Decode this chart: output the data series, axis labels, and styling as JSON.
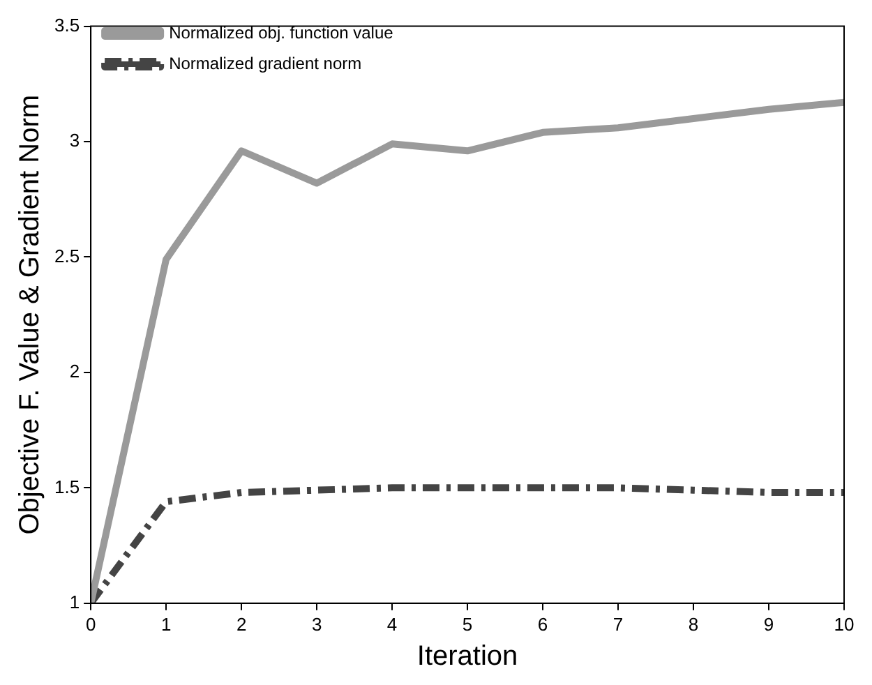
{
  "chart_data": {
    "type": "line",
    "xlabel": "Iteration",
    "ylabel": "Objective F. Value & Gradient Norm",
    "x": [
      0,
      1,
      2,
      3,
      4,
      5,
      6,
      7,
      8,
      9,
      10
    ],
    "series": [
      {
        "name": "Normalized obj. function value",
        "color": "#9a9a9a",
        "line_style": "solid",
        "values": [
          1,
          2.49,
          2.96,
          2.82,
          2.99,
          2.96,
          3.04,
          3.06,
          3.1,
          3.14,
          3.17
        ]
      },
      {
        "name": "Normalized gradient norm",
        "color": "#444444",
        "line_style": "dashed",
        "values": [
          1,
          1.44,
          1.48,
          1.49,
          1.5,
          1.5,
          1.5,
          1.5,
          1.49,
          1.48,
          1.48
        ]
      }
    ],
    "xlim": [
      0,
      10
    ],
    "xticks": [
      0,
      1,
      2,
      3,
      4,
      5,
      6,
      7,
      8,
      9,
      10
    ],
    "ylim": [
      1,
      3.5
    ],
    "yticks": [
      1,
      1.5,
      2,
      2.5,
      3,
      3.5
    ],
    "grid": false,
    "legend": "top left",
    "marker": "none"
  }
}
